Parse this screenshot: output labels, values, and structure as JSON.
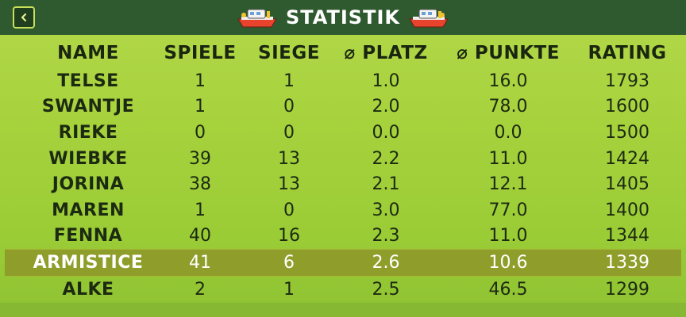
{
  "header": {
    "title": "STATISTIK",
    "back_icon": "chevron-left-icon",
    "decor_icon": "boat-icon"
  },
  "colors": {
    "topbar": "#2f5a2f",
    "highlight_row": "#8f9e2a",
    "background": "#a6d23c"
  },
  "table": {
    "columns": [
      "NAME",
      "SPIELE",
      "SIEGE",
      "⌀ PLATZ",
      "⌀ PUNKTE",
      "RATING"
    ],
    "rows": [
      {
        "name": "TELSE",
        "spiele": "1",
        "siege": "1",
        "platz": "1.0",
        "punkte": "16.0",
        "rating": "1793"
      },
      {
        "name": "SWANTJE",
        "spiele": "1",
        "siege": "0",
        "platz": "2.0",
        "punkte": "78.0",
        "rating": "1600"
      },
      {
        "name": "RIEKE",
        "spiele": "0",
        "siege": "0",
        "platz": "0.0",
        "punkte": "0.0",
        "rating": "1500"
      },
      {
        "name": "WIEBKE",
        "spiele": "39",
        "siege": "13",
        "platz": "2.2",
        "punkte": "11.0",
        "rating": "1424"
      },
      {
        "name": "JORINA",
        "spiele": "38",
        "siege": "13",
        "platz": "2.1",
        "punkte": "12.1",
        "rating": "1405"
      },
      {
        "name": "MAREN",
        "spiele": "1",
        "siege": "0",
        "platz": "3.0",
        "punkte": "77.0",
        "rating": "1400"
      },
      {
        "name": "FENNA",
        "spiele": "40",
        "siege": "16",
        "platz": "2.3",
        "punkte": "11.0",
        "rating": "1344"
      },
      {
        "name": "ARMISTICE",
        "spiele": "41",
        "siege": "6",
        "platz": "2.6",
        "punkte": "10.6",
        "rating": "1339",
        "highlight": true
      },
      {
        "name": "ALKE",
        "spiele": "2",
        "siege": "1",
        "platz": "2.5",
        "punkte": "46.5",
        "rating": "1299"
      }
    ]
  }
}
